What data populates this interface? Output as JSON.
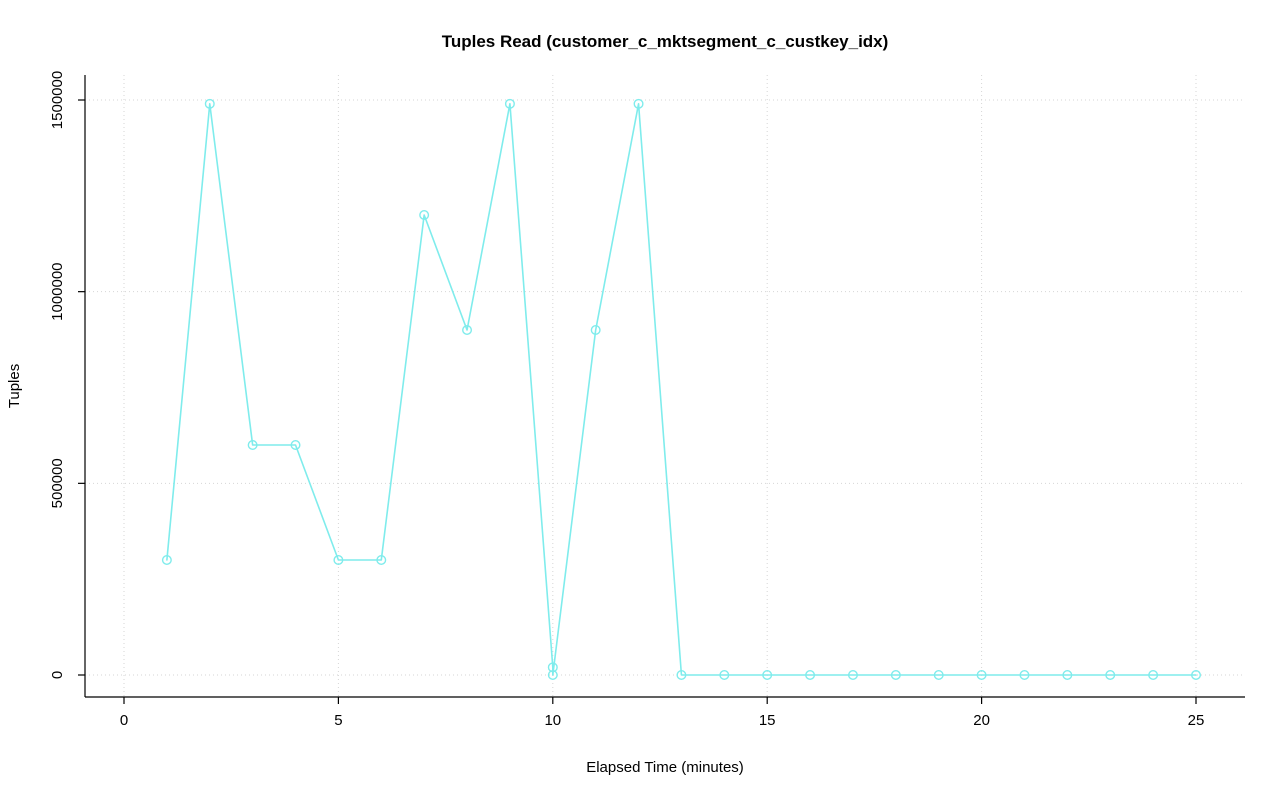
{
  "title": "Tuples Read (customer_c_mktsegment_c_custkey_idx)",
  "colors": {
    "series": "#7FECEC",
    "grid": "#D6D6D6",
    "axis": "#000000",
    "background": "#FFFFFF"
  },
  "chart_data": {
    "type": "line",
    "title": "Tuples Read (customer_c_mktsegment_c_custkey_idx)",
    "xlabel": "Elapsed Time (minutes)",
    "ylabel": "Tuples",
    "x": [
      1,
      2,
      3,
      4,
      5,
      6,
      7,
      8,
      9,
      10,
      10,
      11,
      12,
      13,
      14,
      15,
      16,
      17,
      18,
      19,
      20,
      21,
      22,
      23,
      24,
      25
    ],
    "values": [
      300000,
      1490000,
      600000,
      600000,
      300000,
      300000,
      1200000,
      900000,
      1490000,
      20000,
      0,
      900000,
      1490000,
      0,
      0,
      0,
      0,
      0,
      0,
      0,
      0,
      0,
      0,
      0,
      0,
      0
    ],
    "x_ticks": [
      0,
      5,
      10,
      15,
      20,
      25
    ],
    "y_ticks": [
      0,
      500000,
      1000000,
      1500000
    ],
    "xlim": [
      0,
      25
    ],
    "ylim": [
      0,
      1500000
    ],
    "grid": true,
    "grid_style": "dotted",
    "marker": "open-circle",
    "legend_position": "none",
    "series_name": "Tuples Read"
  }
}
